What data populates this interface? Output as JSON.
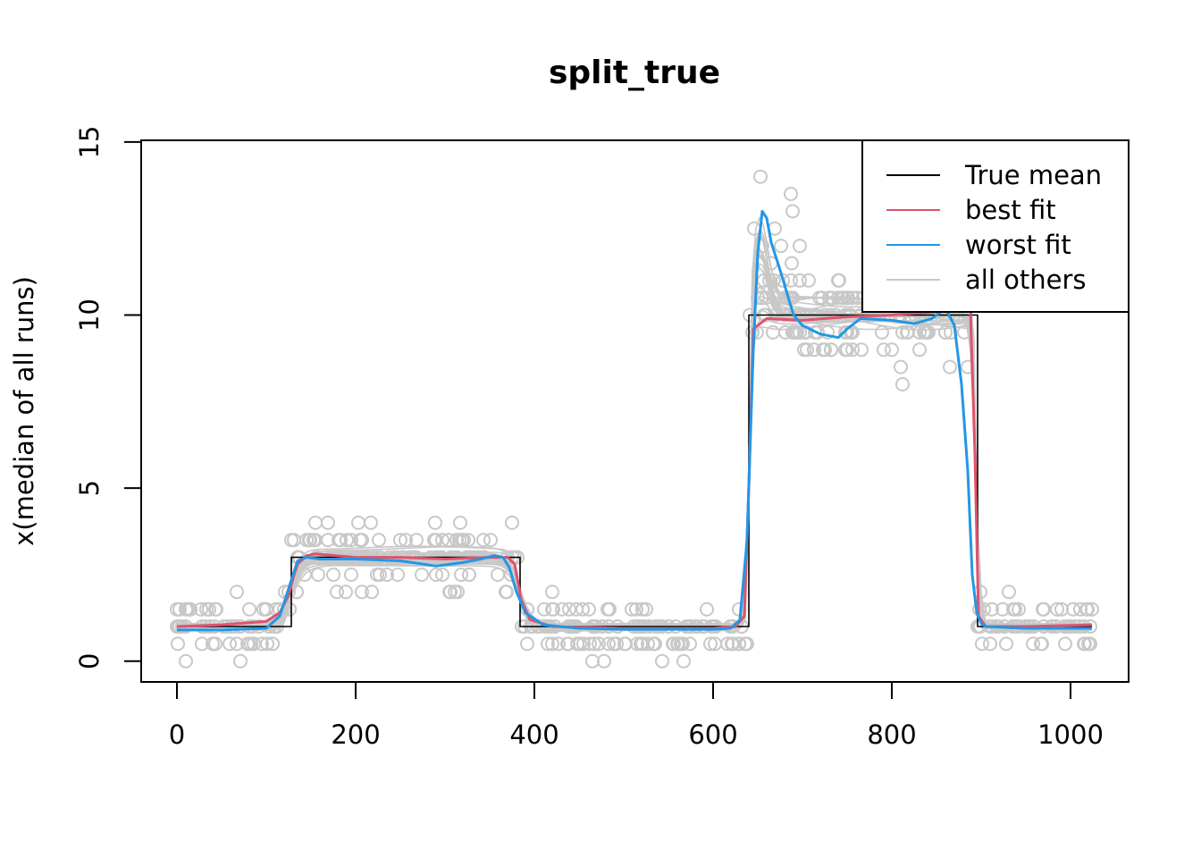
{
  "chart_data": {
    "type": "line",
    "title": "split_true",
    "xlabel": "",
    "ylabel": "x(median of all runs)",
    "xlim": [
      -40,
      1065
    ],
    "ylim": [
      -0.6,
      15.05
    ],
    "x_ticks": [
      0,
      200,
      400,
      600,
      800,
      1000
    ],
    "x_tick_labels": [
      "0",
      "200",
      "400",
      "600",
      "800",
      "1000"
    ],
    "y_ticks": [
      0,
      5,
      10,
      15
    ],
    "y_tick_labels": [
      "0",
      "5",
      "10",
      "15"
    ],
    "grid": false,
    "legend_position": "top-right",
    "legend": [
      {
        "label": "True mean",
        "color": "#000000"
      },
      {
        "label": "best fit",
        "color": "#DF536B"
      },
      {
        "label": "worst fit",
        "color": "#2297E6"
      },
      {
        "label": "all others",
        "color": "#C8C8C8"
      }
    ],
    "series": [
      {
        "name": "True mean",
        "color": "#000000",
        "x": [
          0,
          128,
          128,
          384,
          384,
          640,
          640,
          896,
          896,
          1024
        ],
        "y": [
          1,
          1,
          3,
          3,
          1,
          1,
          10,
          10,
          1,
          1
        ]
      },
      {
        "name": "best fit",
        "color": "#DF536B",
        "x": [
          0,
          50,
          100,
          115,
          125,
          130,
          135,
          145,
          155,
          200,
          250,
          300,
          350,
          370,
          378,
          385,
          395,
          420,
          500,
          600,
          625,
          635,
          640,
          645,
          660,
          700,
          750,
          800,
          850,
          880,
          888,
          893,
          897,
          905,
          950,
          1024
        ],
        "y": [
          1.0,
          1.05,
          1.15,
          1.4,
          1.9,
          2.4,
          2.8,
          3.05,
          3.1,
          3.0,
          3.0,
          2.95,
          3.0,
          3.0,
          2.8,
          1.8,
          1.2,
          1.0,
          0.95,
          0.95,
          1.0,
          1.3,
          5.0,
          9.6,
          9.9,
          9.85,
          9.95,
          10.0,
          10.1,
          10.2,
          10.1,
          6.0,
          1.3,
          1.0,
          1.0,
          1.05
        ]
      },
      {
        "name": "worst fit",
        "color": "#2297E6",
        "x": [
          0,
          50,
          100,
          115,
          125,
          135,
          145,
          160,
          200,
          250,
          290,
          320,
          340,
          355,
          365,
          372,
          380,
          390,
          410,
          450,
          500,
          550,
          600,
          620,
          630,
          638,
          645,
          650,
          655,
          660,
          665,
          675,
          690,
          700,
          720,
          740,
          750,
          765,
          800,
          825,
          845,
          860,
          870,
          878,
          885,
          890,
          895,
          900,
          905,
          950,
          1024
        ],
        "y": [
          0.9,
          0.9,
          0.95,
          1.3,
          2.1,
          2.9,
          3.0,
          2.95,
          2.95,
          2.9,
          2.75,
          2.85,
          2.95,
          3.05,
          3.0,
          2.7,
          2.0,
          1.4,
          1.05,
          0.95,
          0.92,
          0.92,
          0.92,
          0.95,
          1.2,
          3.5,
          9.0,
          11.8,
          13.0,
          12.8,
          12.1,
          11.3,
          10.0,
          9.7,
          9.45,
          9.35,
          9.6,
          9.9,
          9.85,
          9.75,
          9.9,
          10.2,
          9.7,
          8.0,
          5.5,
          2.5,
          1.4,
          1.1,
          1.0,
          0.95,
          0.95
        ]
      }
    ]
  }
}
